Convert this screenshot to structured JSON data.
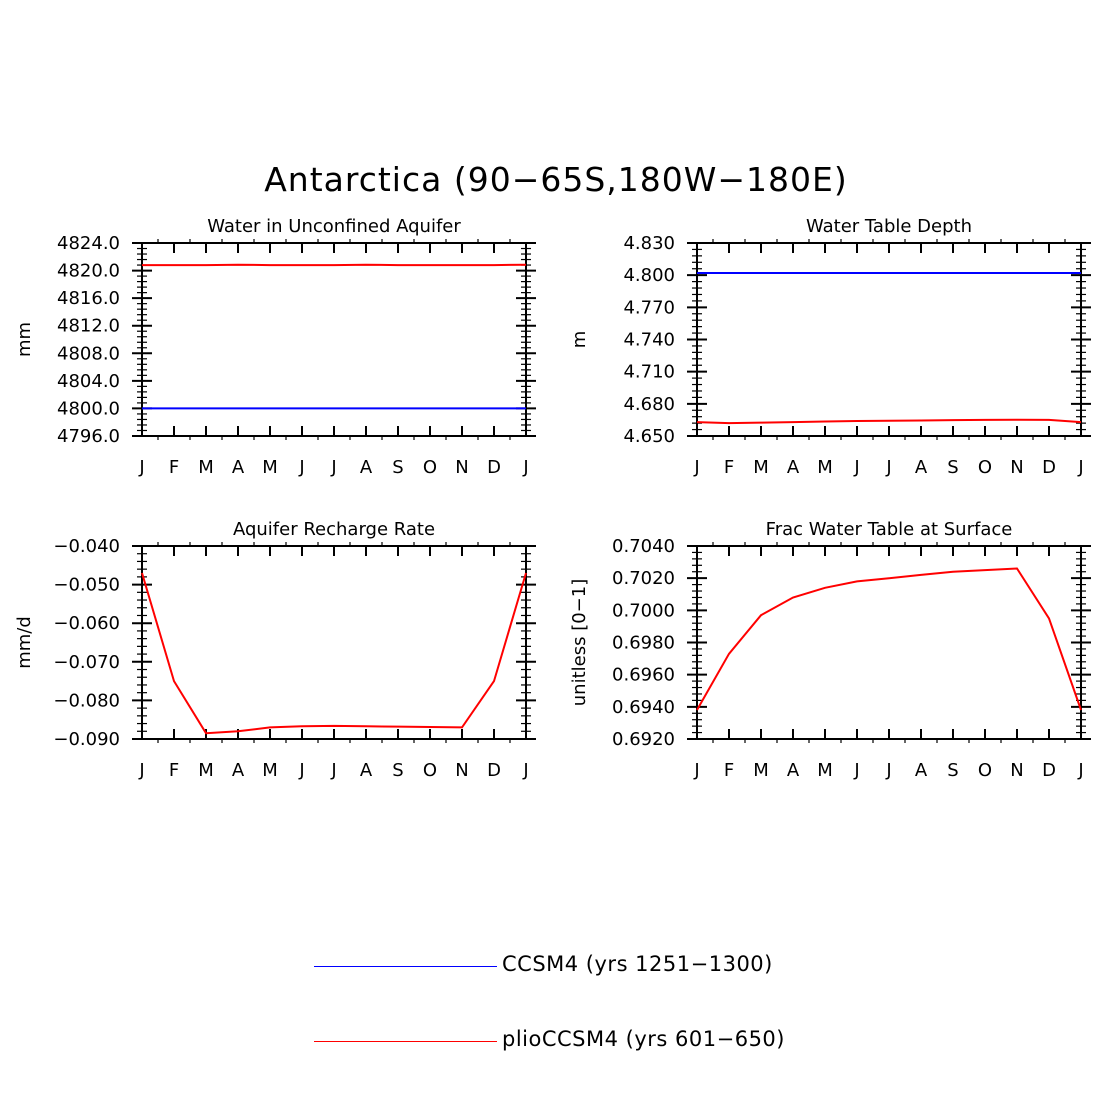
{
  "figure": {
    "title": "Antarctica (90−65S,180W−180E)"
  },
  "legend": [
    {
      "label": "CCSM4 (yrs 1251−1300)",
      "color": "#0000ff"
    },
    {
      "label": "plioCCSM4 (yrs 601−650)",
      "color": "#ff0000"
    }
  ],
  "chart_data": [
    {
      "type": "line",
      "title": "Water in Unconfined Aquifer",
      "xlabel": "",
      "ylabel": "mm",
      "categories": [
        "J",
        "F",
        "M",
        "A",
        "M",
        "J",
        "J",
        "A",
        "S",
        "O",
        "N",
        "D",
        "J"
      ],
      "ylim": [
        4796.0,
        4824.0
      ],
      "yticks": [
        "4796.0",
        "4800.0",
        "4804.0",
        "4808.0",
        "4812.0",
        "4816.0",
        "4820.0",
        "4824.0"
      ],
      "series": [
        {
          "color": "#0000ff",
          "values": [
            4800.0,
            4800.0,
            4800.0,
            4800.0,
            4800.0,
            4800.0,
            4800.0,
            4800.0,
            4800.0,
            4800.0,
            4800.0,
            4800.0,
            4800.0
          ]
        },
        {
          "color": "#ff0000",
          "values": [
            4820.8,
            4820.8,
            4820.8,
            4820.85,
            4820.8,
            4820.8,
            4820.8,
            4820.85,
            4820.8,
            4820.8,
            4820.8,
            4820.8,
            4820.85
          ]
        }
      ]
    },
    {
      "type": "line",
      "title": "Water Table Depth",
      "xlabel": "",
      "ylabel": "m",
      "categories": [
        "J",
        "F",
        "M",
        "A",
        "M",
        "J",
        "J",
        "A",
        "S",
        "O",
        "N",
        "D",
        "J"
      ],
      "ylim": [
        4.65,
        4.83
      ],
      "yticks": [
        "4.650",
        "4.680",
        "4.710",
        "4.740",
        "4.770",
        "4.800",
        "4.830"
      ],
      "series": [
        {
          "color": "#0000ff",
          "values": [
            4.802,
            4.802,
            4.802,
            4.802,
            4.802,
            4.802,
            4.802,
            4.802,
            4.802,
            4.802,
            4.802,
            4.802,
            4.802
          ]
        },
        {
          "color": "#ff0000",
          "values": [
            4.663,
            4.662,
            4.6625,
            4.663,
            4.6635,
            4.664,
            4.6642,
            4.6645,
            4.6648,
            4.665,
            4.6652,
            4.665,
            4.663
          ]
        }
      ]
    },
    {
      "type": "line",
      "title": "Aquifer Recharge Rate",
      "xlabel": "",
      "ylabel": "mm/d",
      "categories": [
        "J",
        "F",
        "M",
        "A",
        "M",
        "J",
        "J",
        "A",
        "S",
        "O",
        "N",
        "D",
        "J"
      ],
      "ylim": [
        -0.09,
        -0.04
      ],
      "yticks": [
        "−0.090",
        "−0.080",
        "−0.070",
        "−0.060",
        "−0.050",
        "−0.040"
      ],
      "series": [
        {
          "color": "#ff0000",
          "values": [
            -0.047,
            -0.075,
            -0.0885,
            -0.088,
            -0.087,
            -0.0867,
            -0.0866,
            -0.0867,
            -0.0868,
            -0.0869,
            -0.087,
            -0.075,
            -0.047
          ]
        }
      ]
    },
    {
      "type": "line",
      "title": "Frac Water Table at Surface",
      "xlabel": "",
      "ylabel": "unitless [0−1]",
      "categories": [
        "J",
        "F",
        "M",
        "A",
        "M",
        "J",
        "J",
        "A",
        "S",
        "O",
        "N",
        "D",
        "J"
      ],
      "ylim": [
        0.692,
        0.704
      ],
      "yticks": [
        "0.6920",
        "0.6940",
        "0.6960",
        "0.6980",
        "0.7000",
        "0.7020",
        "0.7040"
      ],
      "series": [
        {
          "color": "#ff0000",
          "values": [
            0.6938,
            0.6973,
            0.6997,
            0.7008,
            0.7014,
            0.7018,
            0.702,
            0.7022,
            0.7024,
            0.7025,
            0.7026,
            0.6995,
            0.6938
          ]
        }
      ]
    }
  ]
}
